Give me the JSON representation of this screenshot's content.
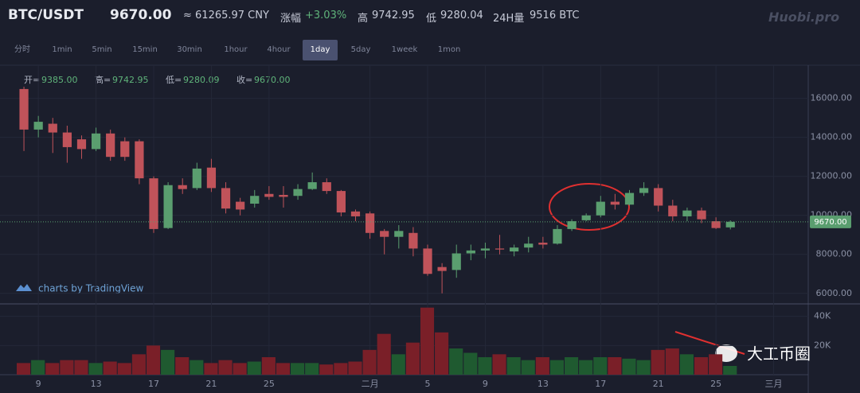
{
  "header": {
    "pair": "BTC/USDT",
    "price": "9670.00",
    "cny": "≈ 61265.97 CNY",
    "change_label": "涨幅",
    "change": "+3.03%",
    "high_label": "高",
    "high": "9742.95",
    "low_label": "低",
    "low": "9280.04",
    "vol_label": "24H量",
    "vol": "9516 BTC",
    "logo": "Huobi.pro"
  },
  "toolbar": {
    "intervals": [
      "分时",
      "1min",
      "5min",
      "15min",
      "30min",
      "1hour",
      "4hour",
      "1day",
      "5day",
      "1week",
      "1mon"
    ],
    "active": "1day"
  },
  "ohlc_legend": [
    {
      "label": "开=",
      "value": "9385.00"
    },
    {
      "label": "高=",
      "value": "9742.95"
    },
    {
      "label": "低=",
      "value": "9280.09"
    },
    {
      "label": "收=",
      "value": "9670.00"
    }
  ],
  "watermark": "charts by TradingView",
  "annotation": "大工币圈",
  "chart_data": {
    "type": "candlestick",
    "open": [
      16480,
      14400,
      14700,
      14250,
      13900,
      13400,
      14200,
      13800,
      13800,
      11900,
      9350,
      11550,
      11400,
      12450,
      11400,
      10700,
      10600,
      11100,
      11050,
      11000,
      11350,
      11700,
      11250,
      10200,
      10100,
      9200,
      8900,
      9100,
      8300,
      7350,
      7200,
      8050,
      8200,
      8300,
      8150,
      8350,
      8600,
      8550,
      9300,
      9750,
      10000,
      10700,
      10550,
      11150,
      11400,
      10500,
      9950,
      10250,
      9700,
      9385
    ],
    "high": [
      16600,
      15100,
      15000,
      14600,
      14100,
      14500,
      14400,
      14000,
      13900,
      12000,
      11700,
      11900,
      12700,
      12900,
      11700,
      10900,
      11300,
      11500,
      11500,
      11600,
      12200,
      11900,
      11300,
      10300,
      10200,
      9300,
      9500,
      9400,
      8500,
      7550,
      8500,
      8500,
      8600,
      9000,
      8500,
      8900,
      8900,
      9500,
      9800,
      10100,
      11000,
      11100,
      11300,
      11700,
      11600,
      10800,
      10400,
      10400,
      9900,
      9742.95
    ],
    "low": [
      13300,
      14000,
      13200,
      12700,
      12900,
      13300,
      12800,
      12800,
      11600,
      9100,
      9300,
      11100,
      11300,
      11200,
      10100,
      10000,
      10400,
      10800,
      10400,
      10800,
      11300,
      11100,
      9950,
      9700,
      8800,
      8000,
      8300,
      7900,
      6900,
      6000,
      6800,
      7700,
      7800,
      8000,
      7900,
      8100,
      8300,
      8500,
      9200,
      9700,
      9900,
      10300,
      10500,
      11000,
      10200,
      9700,
      9700,
      9600,
      9300,
      9280.09
    ],
    "close": [
      14400,
      14800,
      14250,
      13500,
      13400,
      14200,
      13000,
      13000,
      11900,
      9300,
      11550,
      11350,
      12400,
      11400,
      10350,
      10300,
      11000,
      10950,
      10950,
      11350,
      11700,
      11250,
      10150,
      9950,
      9100,
      8900,
      9200,
      8300,
      7000,
      7150,
      8050,
      8200,
      8300,
      8250,
      8350,
      8550,
      8500,
      9300,
      9700,
      10000,
      10700,
      10550,
      11150,
      11400,
      10500,
      9950,
      10250,
      9800,
      9350,
      9670
    ],
    "volume": [
      8,
      10,
      8,
      10,
      10,
      8,
      9,
      8,
      14,
      20,
      17,
      12,
      10,
      8,
      10,
      8,
      9,
      12,
      8,
      8,
      8,
      7,
      8,
      9,
      17,
      28,
      14,
      22,
      46,
      29,
      18,
      15,
      12,
      14,
      12,
      10,
      12,
      10,
      12,
      10,
      12,
      12,
      11,
      10,
      17,
      18,
      14,
      12,
      14,
      6
    ],
    "up_color": "#5a9e6f",
    "down_color": "#c0535a",
    "vol_up_color": "#1f5a30",
    "vol_down_color": "#7a1f28",
    "xlim": [
      -1.66,
      54.4
    ],
    "xticks": [
      {
        "value": 1,
        "label": "9"
      },
      {
        "value": 5,
        "label": "13"
      },
      {
        "value": 9,
        "label": "17"
      },
      {
        "value": 13,
        "label": "21"
      },
      {
        "value": 17,
        "label": "25"
      },
      {
        "value": 24,
        "label": "二月"
      },
      {
        "value": 28,
        "label": "5"
      },
      {
        "value": 32,
        "label": "9"
      },
      {
        "value": 36,
        "label": "13"
      },
      {
        "value": 40,
        "label": "17"
      },
      {
        "value": 44,
        "label": "21"
      },
      {
        "value": 48,
        "label": "25"
      },
      {
        "value": 52,
        "label": "三月"
      }
    ],
    "ylim": [
      5460,
      17700
    ],
    "yticks": [
      {
        "value": 6000,
        "label": "6000.00"
      },
      {
        "value": 8000,
        "label": "8000.00"
      },
      {
        "value": 10000,
        "label": "10000.00"
      },
      {
        "value": 12000,
        "label": "12000.00"
      },
      {
        "value": 14000,
        "label": "14000.00"
      },
      {
        "value": 16000,
        "label": "16000.00"
      }
    ],
    "vol_ylim": [
      0,
      48
    ],
    "vol_yticks": [
      {
        "value": 20,
        "label": "20K"
      },
      {
        "value": 40,
        "label": "40K"
      }
    ],
    "grid": true
  }
}
